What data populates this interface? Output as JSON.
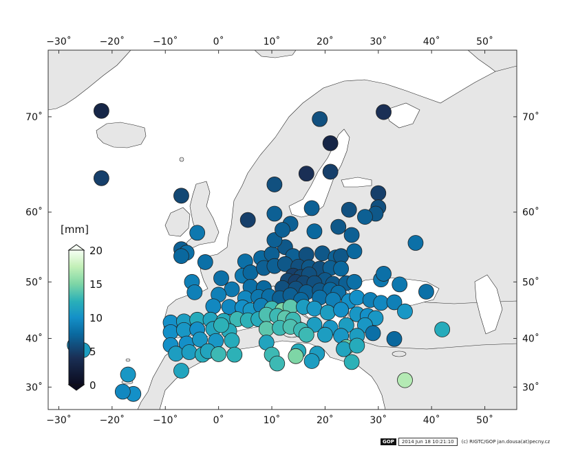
{
  "map": {
    "unit_label": "[mm]",
    "x_ticks": [
      -30,
      -20,
      -10,
      0,
      10,
      20,
      30,
      40,
      50
    ],
    "y_ticks": [
      30,
      40,
      50,
      60,
      70
    ],
    "lon_range": [
      -32,
      56
    ],
    "lat_range": [
      25,
      75
    ],
    "colorbar": {
      "min": 0,
      "max": 20,
      "ticks": [
        0,
        5,
        10,
        15,
        20
      ]
    },
    "colors": {
      "land": "#e6e6e6",
      "sea": "#ffffff",
      "coast": "#222222",
      "frame": "#333333"
    },
    "stations": [
      {
        "lon": -22,
        "lat": 70.5,
        "v": 3
      },
      {
        "lon": -22,
        "lat": 64,
        "v": 5
      },
      {
        "lon": -7,
        "lat": 62,
        "v": 5.5
      },
      {
        "lon": 19,
        "lat": 69.8,
        "v": 6
      },
      {
        "lon": 31,
        "lat": 70.4,
        "v": 4
      },
      {
        "lon": 21,
        "lat": 67.6,
        "v": 3
      },
      {
        "lon": 16.5,
        "lat": 64.5,
        "v": 4
      },
      {
        "lon": 21,
        "lat": 64.7,
        "v": 5
      },
      {
        "lon": 10.5,
        "lat": 63.3,
        "v": 6
      },
      {
        "lon": 30,
        "lat": 62.3,
        "v": 5
      },
      {
        "lon": 24.5,
        "lat": 60.3,
        "v": 6
      },
      {
        "lon": 5.5,
        "lat": 59,
        "v": 5
      },
      {
        "lon": 10.5,
        "lat": 59.8,
        "v": 7
      },
      {
        "lon": 17.5,
        "lat": 60.5,
        "v": 7
      },
      {
        "lon": 30,
        "lat": 60.6,
        "v": 6
      },
      {
        "lon": 29.5,
        "lat": 59.8,
        "v": 6.5
      },
      {
        "lon": 27.5,
        "lat": 59.4,
        "v": 7
      },
      {
        "lon": 22.5,
        "lat": 58.1,
        "v": 6.5
      },
      {
        "lon": 13.5,
        "lat": 58.5,
        "v": 7
      },
      {
        "lon": 18,
        "lat": 57.5,
        "v": 7.5
      },
      {
        "lon": 25,
        "lat": 57,
        "v": 7
      },
      {
        "lon": 37,
        "lat": 55.9,
        "v": 8
      },
      {
        "lon": -4,
        "lat": 57.3,
        "v": 8.5
      },
      {
        "lon": -7,
        "lat": 55,
        "v": 7
      },
      {
        "lon": -6,
        "lat": 54.5,
        "v": 8
      },
      {
        "lon": -7,
        "lat": 54,
        "v": 7.5
      },
      {
        "lon": -2.5,
        "lat": 53.1,
        "v": 8
      },
      {
        "lon": 5,
        "lat": 53.2,
        "v": 8
      },
      {
        "lon": 8,
        "lat": 53.7,
        "v": 7.5
      },
      {
        "lon": 10,
        "lat": 54.3,
        "v": 7
      },
      {
        "lon": 12.5,
        "lat": 55.3,
        "v": 6.5
      },
      {
        "lon": 14,
        "lat": 54,
        "v": 7
      },
      {
        "lon": 16.5,
        "lat": 54.2,
        "v": 6
      },
      {
        "lon": 19.5,
        "lat": 54.4,
        "v": 6.5
      },
      {
        "lon": 22,
        "lat": 53.8,
        "v": 7
      },
      {
        "lon": 23,
        "lat": 54,
        "v": 6.5
      },
      {
        "lon": 25.5,
        "lat": 54.7,
        "v": 7.5
      },
      {
        "lon": 10.5,
        "lat": 56.3,
        "v": 7
      },
      {
        "lon": 12,
        "lat": 57.7,
        "v": 7
      },
      {
        "lon": -5,
        "lat": 50,
        "v": 9
      },
      {
        "lon": 0.5,
        "lat": 50.6,
        "v": 8
      },
      {
        "lon": 4.5,
        "lat": 51,
        "v": 8.5
      },
      {
        "lon": 6,
        "lat": 51.5,
        "v": 7.5
      },
      {
        "lon": 8.5,
        "lat": 52.2,
        "v": 7
      },
      {
        "lon": 10.5,
        "lat": 52.5,
        "v": 7
      },
      {
        "lon": 12.5,
        "lat": 52.8,
        "v": 6.5
      },
      {
        "lon": 15,
        "lat": 52.4,
        "v": 6
      },
      {
        "lon": 17,
        "lat": 52.3,
        "v": 6.5
      },
      {
        "lon": 19,
        "lat": 52.1,
        "v": 6
      },
      {
        "lon": 21,
        "lat": 52.2,
        "v": 7
      },
      {
        "lon": 23,
        "lat": 52.1,
        "v": 7.5
      },
      {
        "lon": 14,
        "lat": 51,
        "v": 5
      },
      {
        "lon": 15.5,
        "lat": 50.8,
        "v": 5.5
      },
      {
        "lon": 17,
        "lat": 51.2,
        "v": 6
      },
      {
        "lon": 20,
        "lat": 50.3,
        "v": 6.5
      },
      {
        "lon": 13,
        "lat": 50.2,
        "v": 5.5
      },
      {
        "lon": 14.5,
        "lat": 50,
        "v": 5
      },
      {
        "lon": 16,
        "lat": 49.8,
        "v": 5.5
      },
      {
        "lon": 18,
        "lat": 49.8,
        "v": 6
      },
      {
        "lon": 21.5,
        "lat": 49.7,
        "v": 6.5
      },
      {
        "lon": 24,
        "lat": 49.8,
        "v": 7
      },
      {
        "lon": 25.5,
        "lat": 50,
        "v": 8
      },
      {
        "lon": 30.5,
        "lat": 50.4,
        "v": 8.5
      },
      {
        "lon": 31,
        "lat": 51.3,
        "v": 8
      },
      {
        "lon": 34,
        "lat": 49.6,
        "v": 8.5
      },
      {
        "lon": 39,
        "lat": 48.4,
        "v": 8
      },
      {
        "lon": 12,
        "lat": 49,
        "v": 6
      },
      {
        "lon": 14.5,
        "lat": 48.9,
        "v": 6
      },
      {
        "lon": 16.5,
        "lat": 48.3,
        "v": 7
      },
      {
        "lon": 19,
        "lat": 48.6,
        "v": 6.5
      },
      {
        "lon": 21,
        "lat": 48.7,
        "v": 7.5
      },
      {
        "lon": 22.5,
        "lat": 48.2,
        "v": 8
      },
      {
        "lon": 2.5,
        "lat": 48.8,
        "v": 8.5
      },
      {
        "lon": 6,
        "lat": 49.2,
        "v": 8
      },
      {
        "lon": 8.5,
        "lat": 49,
        "v": 7.5
      },
      {
        "lon": -4.5,
        "lat": 48.3,
        "v": 9
      },
      {
        "lon": 0,
        "lat": 47.9,
        "v": 9
      },
      {
        "lon": 5,
        "lat": 47.3,
        "v": 9.5
      },
      {
        "lon": 7.5,
        "lat": 47.5,
        "v": 8.5
      },
      {
        "lon": 9.5,
        "lat": 47.6,
        "v": 8
      },
      {
        "lon": 11.5,
        "lat": 47.3,
        "v": 7
      },
      {
        "lon": 13.5,
        "lat": 47.8,
        "v": 7
      },
      {
        "lon": 15.5,
        "lat": 47,
        "v": 7.5
      },
      {
        "lon": 19,
        "lat": 47.4,
        "v": 8
      },
      {
        "lon": 21.5,
        "lat": 47,
        "v": 9
      },
      {
        "lon": 24.5,
        "lat": 46.8,
        "v": 10
      },
      {
        "lon": 26,
        "lat": 47.4,
        "v": 10
      },
      {
        "lon": 28.5,
        "lat": 47,
        "v": 9
      },
      {
        "lon": 30.5,
        "lat": 46.5,
        "v": 9.5
      },
      {
        "lon": 33,
        "lat": 46.6,
        "v": 9
      },
      {
        "lon": 35,
        "lat": 45,
        "v": 10.5
      },
      {
        "lon": -1,
        "lat": 45.9,
        "v": 9.5
      },
      {
        "lon": 2,
        "lat": 45.8,
        "v": 9.5
      },
      {
        "lon": 4.5,
        "lat": 45.7,
        "v": 10
      },
      {
        "lon": 6,
        "lat": 45.2,
        "v": 10.5
      },
      {
        "lon": 8,
        "lat": 46,
        "v": 9
      },
      {
        "lon": 10,
        "lat": 45.5,
        "v": 13
      },
      {
        "lon": 12,
        "lat": 45.2,
        "v": 15
      },
      {
        "lon": 13.5,
        "lat": 45.8,
        "v": 14
      },
      {
        "lon": 16,
        "lat": 45.8,
        "v": 11
      },
      {
        "lon": 18,
        "lat": 45.5,
        "v": 10.5
      },
      {
        "lon": 20.5,
        "lat": 44.8,
        "v": 11
      },
      {
        "lon": 23,
        "lat": 45.3,
        "v": 10
      },
      {
        "lon": 26,
        "lat": 44.5,
        "v": 10.5
      },
      {
        "lon": 28,
        "lat": 44.2,
        "v": 10
      },
      {
        "lon": 29.5,
        "lat": 43.8,
        "v": 10.5
      },
      {
        "lon": -9,
        "lat": 43,
        "v": 10
      },
      {
        "lon": -6.5,
        "lat": 43.2,
        "v": 11
      },
      {
        "lon": -4,
        "lat": 43.5,
        "v": 12
      },
      {
        "lon": -1.5,
        "lat": 43.5,
        "v": 11.5
      },
      {
        "lon": 1,
        "lat": 43.3,
        "v": 12
      },
      {
        "lon": 3.5,
        "lat": 43.6,
        "v": 13
      },
      {
        "lon": 5.5,
        "lat": 43.4,
        "v": 12.5
      },
      {
        "lon": 7.5,
        "lat": 43.6,
        "v": 12
      },
      {
        "lon": 9,
        "lat": 44.4,
        "v": 13.5
      },
      {
        "lon": 11,
        "lat": 44.2,
        "v": 13
      },
      {
        "lon": 12.5,
        "lat": 43.8,
        "v": 14
      },
      {
        "lon": 14,
        "lat": 43.5,
        "v": 13
      },
      {
        "lon": 18,
        "lat": 42.6,
        "v": 11
      },
      {
        "lon": 21,
        "lat": 42,
        "v": 10.5
      },
      {
        "lon": 24,
        "lat": 42.5,
        "v": 11
      },
      {
        "lon": 27.5,
        "lat": 42.5,
        "v": 10.5
      },
      {
        "lon": 42,
        "lat": 41.7,
        "v": 12
      },
      {
        "lon": -9,
        "lat": 41.2,
        "v": 10
      },
      {
        "lon": -6.5,
        "lat": 41.6,
        "v": 10.5
      },
      {
        "lon": -4,
        "lat": 41.7,
        "v": 10
      },
      {
        "lon": -1,
        "lat": 41.8,
        "v": 11.5
      },
      {
        "lon": 2,
        "lat": 41.4,
        "v": 12
      },
      {
        "lon": 0.5,
        "lat": 42.5,
        "v": 12.5
      },
      {
        "lon": 9,
        "lat": 41.8,
        "v": 14
      },
      {
        "lon": 11.5,
        "lat": 42,
        "v": 13
      },
      {
        "lon": 13.5,
        "lat": 42.2,
        "v": 13.5
      },
      {
        "lon": 15.5,
        "lat": 41.6,
        "v": 13
      },
      {
        "lon": 20,
        "lat": 40.7,
        "v": 11
      },
      {
        "lon": 23,
        "lat": 40.5,
        "v": 10.5
      },
      {
        "lon": 26,
        "lat": 40.5,
        "v": 11
      },
      {
        "lon": 29,
        "lat": 41,
        "v": 8
      },
      {
        "lon": 33,
        "lat": 39.9,
        "v": 7.5
      },
      {
        "lon": -9,
        "lat": 38.7,
        "v": 10
      },
      {
        "lon": -6,
        "lat": 39,
        "v": 10
      },
      {
        "lon": -3.5,
        "lat": 39.8,
        "v": 10.5
      },
      {
        "lon": -0.5,
        "lat": 39.5,
        "v": 10.5
      },
      {
        "lon": 2.5,
        "lat": 39.6,
        "v": 12
      },
      {
        "lon": 9,
        "lat": 39.2,
        "v": 11.5
      },
      {
        "lon": 16.5,
        "lat": 40.7,
        "v": 13
      },
      {
        "lon": 24,
        "lat": 38.3,
        "v": 14.5
      },
      {
        "lon": -8,
        "lat": 37,
        "v": 11
      },
      {
        "lon": -5.5,
        "lat": 37.3,
        "v": 11
      },
      {
        "lon": -3,
        "lat": 36.8,
        "v": 12
      },
      {
        "lon": -2,
        "lat": 37.5,
        "v": 11.5
      },
      {
        "lon": 0,
        "lat": 36.9,
        "v": 13
      },
      {
        "lon": 3,
        "lat": 36.8,
        "v": 12.5
      },
      {
        "lon": 10,
        "lat": 36.8,
        "v": 13
      },
      {
        "lon": 15,
        "lat": 37.5,
        "v": 12
      },
      {
        "lon": 18.5,
        "lat": 37,
        "v": 11
      },
      {
        "lon": 23.5,
        "lat": 37.9,
        "v": 11.5
      },
      {
        "lon": 26,
        "lat": 38.6,
        "v": 12
      },
      {
        "lon": 14.5,
        "lat": 36.5,
        "v": 15
      },
      {
        "lon": 11,
        "lat": 35,
        "v": 13
      },
      {
        "lon": 17.5,
        "lat": 35.5,
        "v": 11
      },
      {
        "lon": 25,
        "lat": 35.3,
        "v": 12.5
      },
      {
        "lon": 35,
        "lat": 31.5,
        "v": 17
      },
      {
        "lon": -7,
        "lat": 33.5,
        "v": 11.5
      },
      {
        "lon": -17,
        "lat": 32.7,
        "v": 10.5
      },
      {
        "lon": -16,
        "lat": 28.5,
        "v": 10
      },
      {
        "lon": -18,
        "lat": 29,
        "v": 9.5
      },
      {
        "lon": -27,
        "lat": 38.7,
        "v": 10
      },
      {
        "lon": -25.5,
        "lat": 37.7,
        "v": 11
      }
    ]
  },
  "footer": {
    "logo_text": "GOP",
    "datetime": "2014 Jun 18 10:21:10",
    "credit": "(c) RIGTC/GOP jan.dousa(at)pecny.cz"
  }
}
